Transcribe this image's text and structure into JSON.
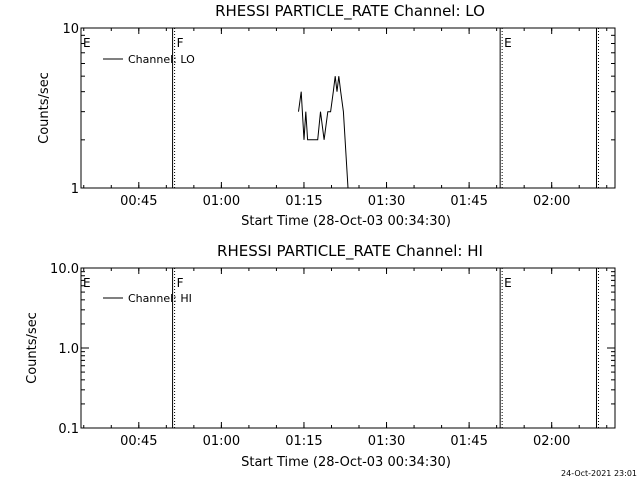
{
  "timestamp": "24-Oct-2021 23:01",
  "chart_data": [
    {
      "type": "line",
      "title": "RHESSI PARTICLE_RATE Channel: LO",
      "xlabel": "Start Time (28-Oct-03 00:34:30)",
      "ylabel": "Counts/sec",
      "yscale": "log",
      "xlim": [
        "00:34:30",
        "02:11:30"
      ],
      "ylim": [
        1,
        10
      ],
      "xticks": [
        "00:45",
        "01:00",
        "01:15",
        "01:30",
        "01:45",
        "02:00"
      ],
      "yticks": [
        "1",
        "10"
      ],
      "grid": false,
      "legend_position": "top-left",
      "series": [
        {
          "name": "Channel: LO",
          "color": "#000000",
          "x": [
            "01:14:00",
            "01:14:30",
            "01:15:00",
            "01:15:20",
            "01:15:40",
            "01:16:20",
            "01:16:40",
            "01:17:00",
            "01:17:30",
            "01:18:00",
            "01:18:40",
            "01:19:20",
            "01:19:50",
            "01:20:20",
            "01:20:40",
            "01:21:00",
            "01:21:20",
            "01:21:40",
            "01:22:10",
            "01:23:00"
          ],
          "values": [
            3,
            4,
            2,
            3,
            2,
            2,
            2,
            2,
            2,
            3,
            2,
            3,
            3,
            4,
            5,
            4,
            5,
            4,
            3,
            1
          ]
        }
      ],
      "markers": [
        {
          "label": "E",
          "x": "00:34:30",
          "style": "solid"
        },
        {
          "label": "F",
          "x": "00:51:30",
          "style": "dotted"
        },
        {
          "label": "E",
          "x": "01:51:00",
          "style": "dotted"
        },
        {
          "label": "",
          "x": "02:08:30",
          "style": "dotted"
        }
      ]
    },
    {
      "type": "line",
      "title": "RHESSI PARTICLE_RATE Channel: HI",
      "xlabel": "Start Time (28-Oct-03 00:34:30)",
      "ylabel": "Counts/sec",
      "yscale": "log",
      "xlim": [
        "00:34:30",
        "02:11:30"
      ],
      "ylim": [
        0.1,
        10.0
      ],
      "xticks": [
        "00:45",
        "01:00",
        "01:15",
        "01:30",
        "01:45",
        "02:00"
      ],
      "yticks": [
        "0.1",
        "1.0",
        "10.0"
      ],
      "grid": false,
      "legend_position": "top-left",
      "series": [
        {
          "name": "Channel: HI",
          "color": "#000000",
          "x": [],
          "values": []
        }
      ],
      "markers": [
        {
          "label": "E",
          "x": "00:34:30",
          "style": "solid"
        },
        {
          "label": "F",
          "x": "00:51:30",
          "style": "dotted"
        },
        {
          "label": "E",
          "x": "01:51:00",
          "style": "dotted"
        },
        {
          "label": "",
          "x": "02:08:30",
          "style": "dotted"
        }
      ]
    }
  ]
}
